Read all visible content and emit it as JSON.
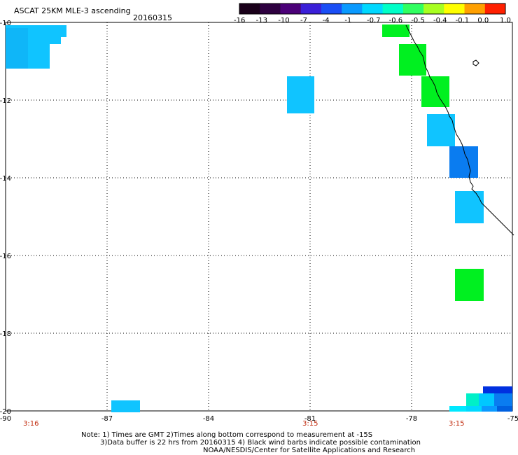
{
  "title": "ASCAT 25KM MLE-3 ascending",
  "date": "20160315",
  "colorbar": {
    "tick_labels": [
      "-16",
      "-13",
      "-10",
      "-7",
      "-4",
      "-1",
      "-0.7",
      "-0.6",
      "-0.5",
      "-0.4",
      "-0.1",
      "0.0",
      "1.0"
    ],
    "colors": [
      "#1a001a",
      "#2e0040",
      "#4b0078",
      "#3a1fd8",
      "#1a4ef5",
      "#0a9aff",
      "#00d8ff",
      "#00ffc8",
      "#30ff60",
      "#a8ff20",
      "#ffff00",
      "#ffa000",
      "#ff2000"
    ]
  },
  "map": {
    "lon_ticks": [
      "-90",
      "-87",
      "-84",
      "-81",
      "-78",
      "-75"
    ],
    "lat_ticks": [
      "-10",
      "-12",
      "-14",
      "-16",
      "-18",
      "-20"
    ],
    "time_labels": [
      "3:16",
      "3:15",
      "3:15"
    ],
    "colors": {
      "green": "#00f020",
      "lightblue": "#10c4ff",
      "cyan": "#00e8ff",
      "blue": "#0a7cf0",
      "darkblue": "#0030e0"
    }
  },
  "notes": {
    "line1": "Note: 1) Times are GMT 2)Times along bottom correspond to measurement at -15S",
    "line2": "3)Data buffer is 22 hrs from 20160315 4) Black wind barbs indicate possible contamination",
    "line3": "NOAA/NESDIS/Center for Satellite Applications and Research"
  }
}
